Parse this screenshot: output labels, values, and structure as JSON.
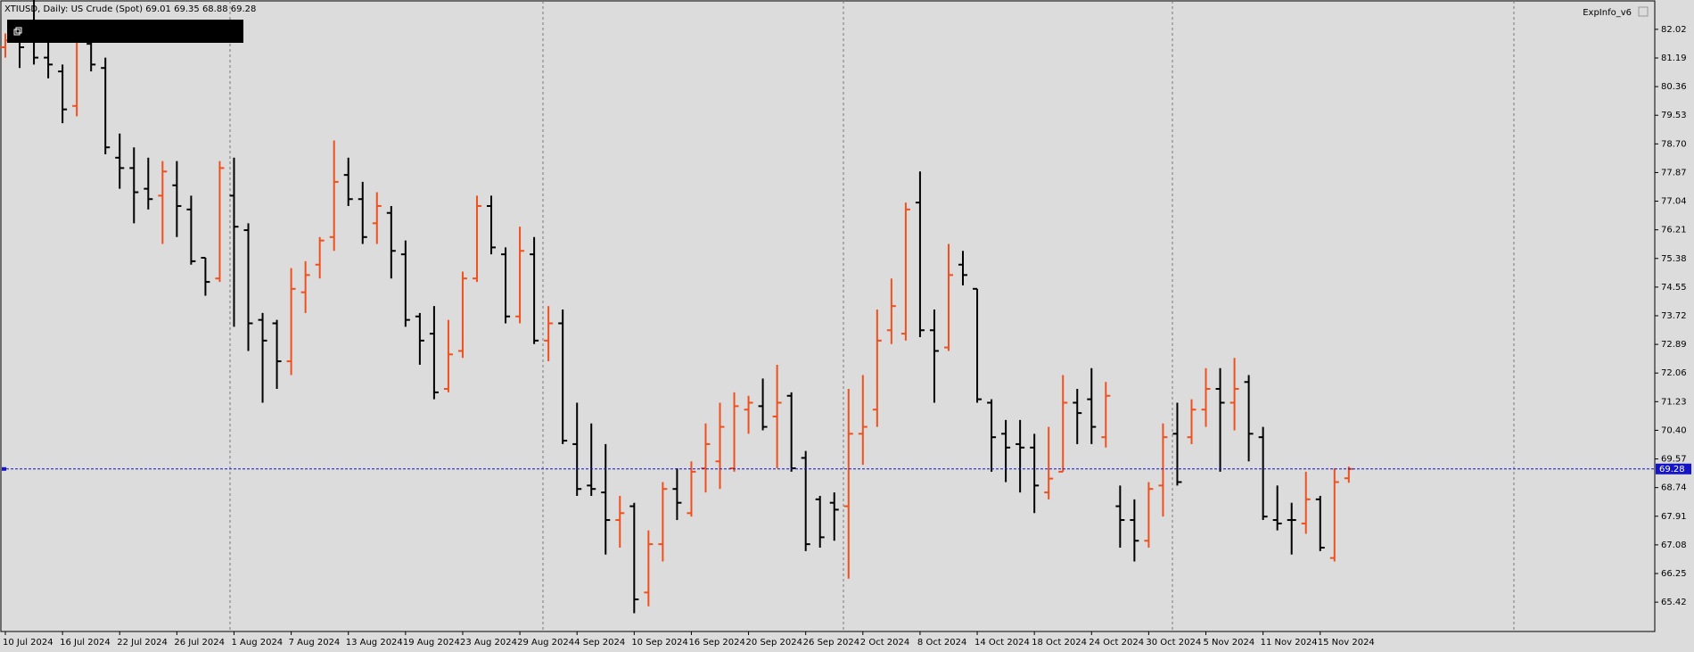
{
  "chart_data": {
    "type": "ohlc",
    "symbol": "XTIUSD, Daily:",
    "description": "US Crude (Spot)",
    "indicator": "ExpInfo_v6",
    "up_color": "#f0501e",
    "down_color": "#000000",
    "bid_line_color": "#1515c8",
    "categories": [
      "10 Jul 2024",
      null,
      null,
      null,
      "16 Jul 2024",
      null,
      null,
      null,
      "22 Jul 2024",
      null,
      null,
      null,
      "26 Jul 2024",
      null,
      null,
      null,
      "1 Aug 2024",
      null,
      null,
      null,
      "7 Aug 2024",
      null,
      null,
      null,
      "13 Aug 2024",
      null,
      null,
      null,
      "19 Aug 2024",
      null,
      null,
      null,
      "23 Aug 2024",
      null,
      null,
      null,
      "29 Aug 2024",
      null,
      null,
      null,
      "4 Sep 2024",
      null,
      null,
      null,
      "10 Sep 2024",
      null,
      null,
      null,
      "16 Sep 2024",
      null,
      null,
      null,
      "20 Sep 2024",
      null,
      null,
      null,
      "26 Sep 2024",
      null,
      null,
      null,
      "2 Oct 2024",
      null,
      null,
      null,
      "8 Oct 2024",
      null,
      null,
      null,
      "14 Oct 2024",
      null,
      null,
      null,
      "18 Oct 2024",
      null,
      null,
      null,
      "24 Oct 2024",
      null,
      null,
      null,
      "30 Oct 2024",
      null,
      null,
      null,
      "5 Nov 2024",
      null,
      null,
      null,
      "11 Nov 2024",
      null,
      null,
      null,
      "15 Nov 2024",
      null,
      null
    ],
    "open": [
      81.5,
      82.0,
      81.8,
      81.2,
      80.8,
      79.8,
      81.6,
      80.9,
      78.3,
      78.0,
      77.4,
      77.2,
      77.5,
      76.8,
      75.4,
      74.8,
      77.2,
      76.2,
      73.6,
      73.5,
      72.4,
      74.4,
      75.2,
      76.0,
      77.8,
      77.1,
      76.4,
      76.7,
      75.5,
      73.7,
      73.2,
      71.6,
      72.7,
      74.8,
      76.9,
      75.5,
      73.7,
      75.5,
      73.0,
      73.5,
      70.0,
      68.8,
      68.6,
      67.8,
      68.2,
      65.7,
      67.1,
      68.7,
      68.0,
      69.3,
      69.5,
      69.3,
      71.0,
      71.1,
      70.8,
      71.4,
      69.6,
      68.4,
      68.3,
      68.2,
      70.3,
      71.0,
      73.3,
      73.2,
      77.0,
      73.3,
      72.8,
      75.2,
      74.5,
      71.2,
      70.3,
      70.0,
      69.9,
      68.6,
      69.2,
      71.2,
      71.3,
      70.2,
      68.2,
      67.8,
      67.2,
      68.8,
      70.3,
      70.2,
      71.0,
      71.6,
      71.2,
      71.8,
      70.2,
      67.8,
      67.8,
      67.7,
      68.4,
      66.7,
      69.01
    ],
    "high": [
      81.9,
      82.3,
      82.9,
      81.7,
      81.0,
      82.0,
      82.0,
      81.2,
      79.0,
      78.6,
      78.3,
      78.2,
      78.2,
      77.2,
      75.4,
      78.2,
      78.3,
      76.4,
      73.8,
      73.6,
      75.1,
      75.3,
      76.0,
      78.8,
      78.3,
      77.6,
      77.3,
      76.9,
      75.9,
      73.8,
      74.0,
      73.6,
      75.0,
      77.2,
      77.2,
      75.7,
      76.3,
      76.0,
      74.0,
      73.9,
      71.2,
      70.6,
      70.0,
      68.5,
      68.3,
      67.5,
      68.9,
      69.3,
      69.5,
      70.6,
      71.2,
      71.5,
      71.4,
      71.9,
      72.3,
      71.5,
      69.8,
      68.5,
      68.6,
      71.6,
      72.0,
      73.9,
      74.8,
      77.0,
      77.9,
      73.9,
      75.8,
      75.6,
      74.5,
      71.3,
      70.7,
      70.7,
      70.3,
      70.5,
      72.0,
      71.6,
      72.2,
      71.8,
      68.8,
      68.4,
      68.9,
      70.6,
      71.2,
      71.3,
      72.2,
      72.2,
      72.5,
      72.0,
      70.5,
      68.8,
      68.3,
      69.2,
      68.5,
      69.3,
      69.35
    ],
    "low": [
      81.2,
      80.9,
      81.0,
      80.6,
      79.3,
      79.5,
      80.8,
      78.4,
      77.4,
      76.4,
      76.8,
      75.8,
      76.0,
      75.2,
      74.3,
      74.7,
      73.4,
      72.7,
      71.2,
      71.6,
      72.0,
      73.8,
      74.8,
      75.6,
      76.9,
      75.8,
      75.8,
      74.8,
      73.4,
      72.3,
      71.3,
      71.5,
      72.5,
      74.7,
      75.5,
      73.5,
      73.5,
      72.9,
      72.4,
      70.0,
      68.5,
      68.5,
      66.8,
      67.0,
      65.1,
      65.3,
      66.6,
      67.8,
      67.9,
      68.6,
      68.7,
      69.2,
      70.3,
      70.4,
      69.3,
      69.2,
      66.9,
      67.0,
      67.2,
      66.1,
      69.4,
      70.5,
      72.9,
      73.0,
      73.1,
      71.2,
      72.7,
      74.6,
      71.2,
      69.2,
      68.9,
      68.6,
      68.0,
      68.4,
      69.2,
      70.0,
      70.0,
      69.9,
      67.0,
      66.6,
      67.0,
      67.9,
      68.8,
      70.0,
      70.5,
      69.2,
      70.4,
      69.5,
      67.8,
      67.5,
      66.8,
      67.4,
      66.9,
      66.6,
      68.88
    ],
    "close": [
      81.7,
      81.5,
      81.2,
      81.0,
      79.7,
      81.9,
      81.0,
      78.6,
      78.0,
      77.3,
      77.1,
      77.9,
      76.9,
      75.3,
      74.7,
      78.0,
      76.3,
      73.5,
      73.0,
      72.4,
      74.5,
      74.9,
      75.9,
      77.6,
      77.1,
      76.0,
      76.9,
      75.6,
      73.6,
      73.0,
      71.5,
      72.6,
      74.8,
      76.9,
      75.7,
      73.7,
      75.6,
      73.0,
      73.5,
      70.1,
      68.7,
      68.7,
      67.8,
      68.0,
      65.5,
      67.1,
      68.7,
      68.3,
      69.2,
      70.0,
      70.5,
      71.1,
      71.2,
      70.5,
      71.2,
      69.3,
      67.1,
      67.3,
      68.1,
      70.3,
      70.5,
      73.0,
      74.0,
      76.8,
      73.3,
      72.7,
      74.9,
      74.9,
      71.3,
      70.2,
      69.9,
      69.9,
      68.8,
      69.0,
      71.2,
      70.9,
      70.5,
      71.4,
      67.8,
      67.2,
      68.7,
      70.2,
      68.9,
      71.0,
      71.6,
      71.2,
      71.6,
      70.3,
      67.9,
      67.7,
      67.8,
      68.4,
      67.0,
      68.9,
      69.28
    ],
    "ylim": [
      64.57,
      82.87
    ],
    "yticks": [
      82.02,
      81.19,
      80.36,
      79.53,
      {
        "value": 78.7,
        "label": "78.70"
      },
      77.87,
      77.04,
      76.21,
      75.38,
      74.55,
      73.72,
      72.89,
      72.06,
      71.23,
      {
        "value": 70.4,
        "label": "70.40"
      },
      69.57,
      68.74,
      67.91,
      67.08,
      66.25,
      65.42
    ]
  }
}
